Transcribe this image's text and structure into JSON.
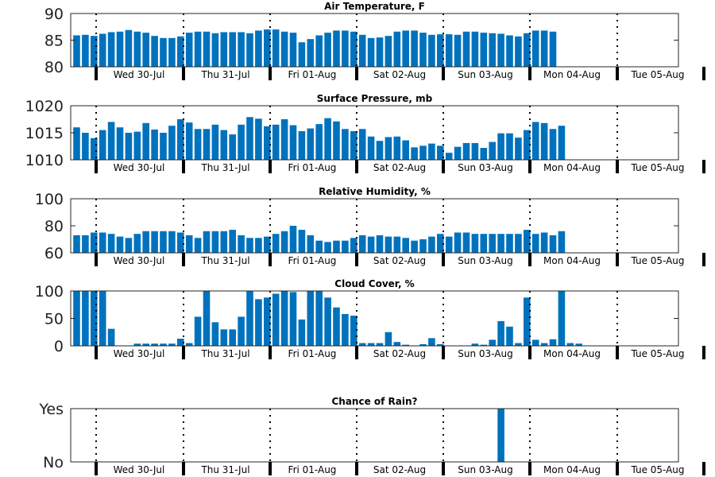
{
  "chart_data": [
    {
      "type": "bar",
      "title": "Air Temperature, F",
      "ylim": [
        80,
        90
      ],
      "yticks": [
        80,
        85,
        90
      ],
      "ytick_labels": [
        "80",
        "85",
        "90"
      ],
      "day_labels": [
        "Wed 30-Jul",
        "Thu 31-Jul",
        "Fri 01-Aug",
        "Sat 02-Aug",
        "Sun 03-Aug",
        "Mon 04-Aug",
        "Tue 05-Aug"
      ],
      "color": "#0072bd",
      "values": [
        85.9,
        86.0,
        85.8,
        86.2,
        86.5,
        86.6,
        86.9,
        86.6,
        86.4,
        85.8,
        85.4,
        85.4,
        85.7,
        86.4,
        86.6,
        86.6,
        86.3,
        86.5,
        86.5,
        86.5,
        86.3,
        86.8,
        87.0,
        87.0,
        86.6,
        86.4,
        84.6,
        85.2,
        85.9,
        86.4,
        86.8,
        86.8,
        86.6,
        86.0,
        85.4,
        85.5,
        85.8,
        86.6,
        86.8,
        86.8,
        86.4,
        86.0,
        86.1,
        86.1,
        86.0,
        86.6,
        86.6,
        86.4,
        86.3,
        86.2,
        85.9,
        85.7,
        86.3,
        86.8,
        86.8,
        86.6
      ]
    },
    {
      "type": "bar",
      "title": "Surface Pressure, mb",
      "ylim": [
        1010,
        1020
      ],
      "yticks": [
        1010,
        1015,
        1020
      ],
      "ytick_labels": [
        "1010",
        "1015",
        "1020"
      ],
      "day_labels": [
        "Wed 30-Jul",
        "Thu 31-Jul",
        "Fri 01-Aug",
        "Sat 02-Aug",
        "Sun 03-Aug",
        "Mon 04-Aug",
        "Tue 05-Aug"
      ],
      "color": "#0072bd",
      "values": [
        1016.0,
        1015.0,
        1014.0,
        1015.5,
        1017.0,
        1016.0,
        1015.0,
        1015.2,
        1016.8,
        1015.6,
        1015.0,
        1016.3,
        1017.5,
        1016.9,
        1015.7,
        1015.7,
        1016.5,
        1015.5,
        1014.7,
        1016.5,
        1017.9,
        1017.6,
        1016.2,
        1016.5,
        1017.5,
        1016.4,
        1015.3,
        1015.8,
        1016.6,
        1017.7,
        1017.1,
        1015.7,
        1015.3,
        1015.7,
        1014.3,
        1013.5,
        1014.2,
        1014.3,
        1013.6,
        1012.3,
        1012.6,
        1013.0,
        1012.6,
        1011.3,
        1012.4,
        1013.1,
        1013.1,
        1012.2,
        1013.3,
        1014.9,
        1014.9,
        1014.1,
        1015.5,
        1017.0,
        1016.8,
        1015.7,
        1016.3
      ]
    },
    {
      "type": "bar",
      "title": "Relative Humidity, %",
      "ylim": [
        60,
        100
      ],
      "yticks": [
        60,
        80,
        100
      ],
      "ytick_labels": [
        "60",
        "80",
        "100"
      ],
      "day_labels": [
        "Wed 30-Jul",
        "Thu 31-Jul",
        "Fri 01-Aug",
        "Sat 02-Aug",
        "Sun 03-Aug",
        "Mon 04-Aug",
        "Tue 05-Aug"
      ],
      "color": "#0072bd",
      "values": [
        73,
        73,
        75,
        75,
        74,
        72,
        71,
        74,
        76,
        76,
        76,
        76,
        75,
        73,
        71,
        76,
        76,
        76,
        77,
        73,
        71,
        71,
        72,
        74,
        76,
        80,
        77,
        73,
        69,
        68,
        69,
        69,
        71,
        73,
        72,
        73,
        72,
        72,
        71,
        69,
        70,
        72,
        74,
        72,
        75,
        75,
        74,
        74,
        74,
        74,
        74,
        74,
        77,
        74,
        75,
        73,
        76
      ]
    },
    {
      "type": "bar",
      "title": "Cloud Cover, %",
      "ylim": [
        0,
        100
      ],
      "yticks": [
        0,
        50,
        100
      ],
      "ytick_labels": [
        "0",
        "50",
        "100"
      ],
      "day_labels": [
        "Wed 30-Jul",
        "Thu 31-Jul",
        "Fri 01-Aug",
        "Sat 02-Aug",
        "Sun 03-Aug",
        "Mon 04-Aug",
        "Tue 05-Aug"
      ],
      "color": "#0072bd",
      "values": [
        100,
        100,
        100,
        100,
        31,
        0,
        0,
        4,
        4,
        4,
        4,
        4,
        13,
        5,
        53,
        100,
        43,
        30,
        30,
        53,
        100,
        85,
        88,
        95,
        100,
        98,
        48,
        100,
        100,
        88,
        70,
        58,
        55,
        5,
        5,
        5,
        25,
        7,
        2,
        0,
        3,
        14,
        3,
        0,
        0,
        0,
        4,
        2,
        11,
        45,
        35,
        5,
        88,
        11,
        5,
        12,
        100,
        5,
        4
      ]
    },
    {
      "type": "bar",
      "title": "Chance of Rain?",
      "ylim": [
        0,
        1
      ],
      "yticks": [
        0,
        1
      ],
      "ytick_labels": [
        "No",
        "Yes"
      ],
      "day_labels": [
        "Wed 30-Jul",
        "Thu 31-Jul",
        "Fri 01-Aug",
        "Sat 02-Aug",
        "Sun 03-Aug",
        "Mon 04-Aug",
        "Tue 05-Aug"
      ],
      "color": "#0072bd",
      "values": [
        0,
        0,
        0,
        0,
        0,
        0,
        0,
        0,
        0,
        0,
        0,
        0,
        0,
        0,
        0,
        0,
        0,
        0,
        0,
        0,
        0,
        0,
        0,
        0,
        0,
        0,
        0,
        0,
        0,
        0,
        0,
        0,
        0,
        0,
        0,
        0,
        0,
        0,
        0,
        0,
        0,
        0,
        0,
        0,
        0,
        0,
        0,
        0,
        0,
        1,
        0,
        0,
        0,
        0,
        0,
        0,
        0
      ]
    }
  ]
}
